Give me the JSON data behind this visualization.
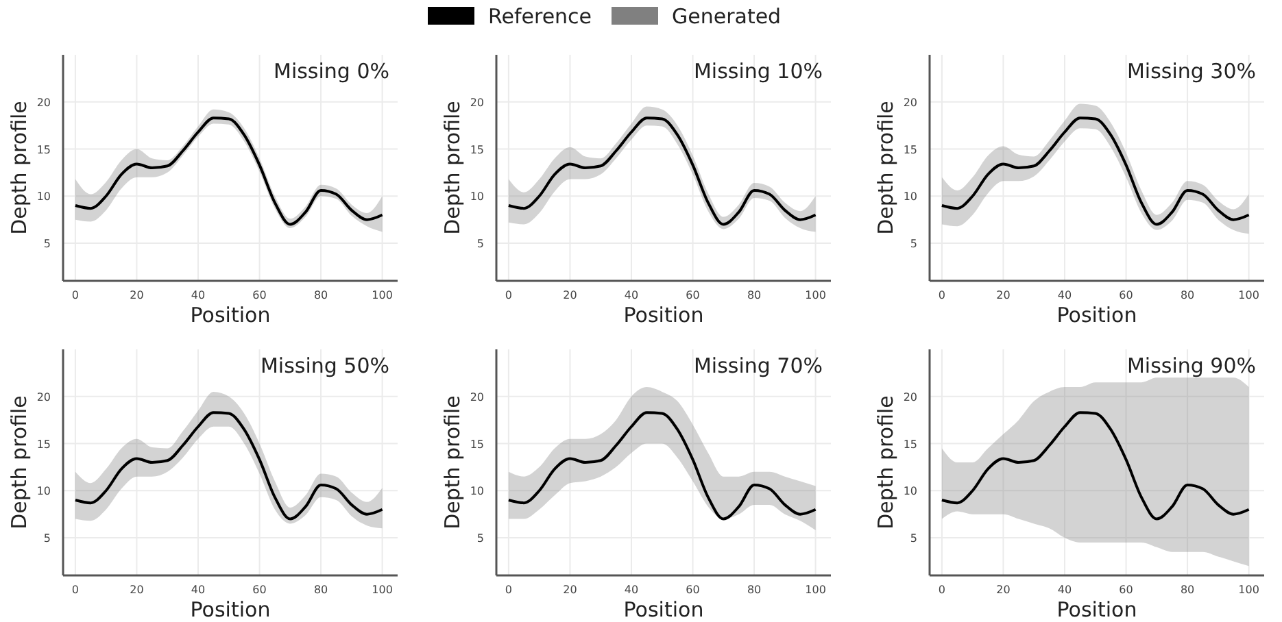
{
  "chart_data": [
    {
      "type": "line",
      "title": "Missing 0%",
      "xlabel": "Position",
      "ylabel": "Depth profile",
      "x": [
        0,
        5,
        10,
        15,
        20,
        25,
        30,
        35,
        40,
        45,
        50,
        55,
        60,
        65,
        70,
        75,
        80,
        85,
        90,
        95,
        100
      ],
      "xlim": [
        -4,
        105
      ],
      "ylim": [
        1,
        25
      ],
      "xticks": [
        0,
        20,
        40,
        60,
        80,
        100
      ],
      "yticks": [
        5,
        10,
        15,
        20
      ],
      "grid": true,
      "legend": "top",
      "series": [
        {
          "name": "Generated",
          "color": "#808080",
          "values": [
            null,
            null,
            null,
            null,
            null,
            null,
            null,
            null,
            null,
            null,
            null,
            null,
            null,
            null,
            null,
            null,
            null,
            null,
            null,
            null,
            null
          ],
          "lower": [
            7.5,
            7.3,
            8.5,
            10.8,
            12.0,
            12.0,
            12.5,
            14.3,
            16.3,
            17.7,
            17.6,
            15.8,
            12.6,
            8.7,
            6.6,
            7.8,
            10.0,
            9.7,
            7.9,
            6.8,
            6.2
          ],
          "upper": [
            11.8,
            10.2,
            11.5,
            13.8,
            15.0,
            14.0,
            13.8,
            15.3,
            17.4,
            19.2,
            18.9,
            17.2,
            14.0,
            10.0,
            7.6,
            8.9,
            11.2,
            10.8,
            9.1,
            8.2,
            10.0
          ]
        },
        {
          "name": "Reference",
          "color": "#000000",
          "values": [
            9,
            8.7,
            10,
            12.3,
            13.4,
            13.0,
            13.2,
            14.8,
            16.8,
            18.3,
            18.2,
            16.5,
            13.3,
            9.3,
            7.0,
            8.3,
            10.6,
            10.2,
            8.5,
            7.5,
            8.0
          ]
        }
      ]
    },
    {
      "type": "line",
      "title": "Missing 10%",
      "xlabel": "Position",
      "ylabel": "Depth profile",
      "x": [
        0,
        5,
        10,
        15,
        20,
        25,
        30,
        35,
        40,
        45,
        50,
        55,
        60,
        65,
        70,
        75,
        80,
        85,
        90,
        95,
        100
      ],
      "xlim": [
        -4,
        105
      ],
      "ylim": [
        1,
        25
      ],
      "xticks": [
        0,
        20,
        40,
        60,
        80,
        100
      ],
      "yticks": [
        5,
        10,
        15,
        20
      ],
      "grid": true,
      "series": [
        {
          "color": "#808080",
          "values": [
            null,
            null,
            null,
            null,
            null,
            null,
            null,
            null,
            null,
            null,
            null,
            null,
            null,
            null,
            null,
            null,
            null,
            null,
            null,
            null,
            null
          ],
          "lower": [
            7.2,
            7.0,
            8.2,
            10.5,
            11.8,
            11.8,
            12.3,
            14.0,
            16.0,
            17.5,
            17.4,
            15.5,
            12.3,
            8.4,
            6.5,
            7.6,
            9.8,
            9.5,
            7.7,
            6.6,
            6.2
          ],
          "upper": [
            11.8,
            10.4,
            11.8,
            14.0,
            15.2,
            14.2,
            14.0,
            15.6,
            17.7,
            19.5,
            19.2,
            17.5,
            14.3,
            10.3,
            7.8,
            9.1,
            11.4,
            11.0,
            9.3,
            8.4,
            10.0
          ]
        },
        {
          "color": "#000000",
          "values": [
            9,
            8.7,
            10,
            12.3,
            13.4,
            13.0,
            13.2,
            14.8,
            16.8,
            18.3,
            18.2,
            16.5,
            13.3,
            9.3,
            7.0,
            8.3,
            10.6,
            10.2,
            8.5,
            7.5,
            8.0
          ]
        }
      ]
    },
    {
      "type": "line",
      "title": "Missing 30%",
      "xlabel": "Position",
      "ylabel": "Depth profile",
      "x": [
        0,
        5,
        10,
        15,
        20,
        25,
        30,
        35,
        40,
        45,
        50,
        55,
        60,
        65,
        70,
        75,
        80,
        85,
        90,
        95,
        100
      ],
      "xlim": [
        -4,
        105
      ],
      "ylim": [
        1,
        25
      ],
      "xticks": [
        0,
        20,
        40,
        60,
        80,
        100
      ],
      "yticks": [
        5,
        10,
        15,
        20
      ],
      "grid": true,
      "series": [
        {
          "color": "#808080",
          "values": [
            null,
            null,
            null,
            null,
            null,
            null,
            null,
            null,
            null,
            null,
            null,
            null,
            null,
            null,
            null,
            null,
            null,
            null,
            null,
            null,
            null
          ],
          "lower": [
            7.0,
            6.8,
            8.0,
            10.3,
            11.6,
            11.6,
            12.1,
            13.8,
            15.8,
            17.2,
            17.1,
            15.2,
            12.0,
            8.2,
            6.4,
            7.4,
            9.6,
            9.3,
            7.5,
            6.4,
            6.0
          ],
          "upper": [
            12.0,
            10.6,
            12.0,
            14.3,
            15.3,
            14.4,
            14.2,
            15.9,
            18.0,
            19.8,
            19.6,
            17.8,
            14.6,
            10.6,
            8.0,
            9.3,
            11.6,
            11.2,
            9.5,
            8.6,
            10.2
          ]
        },
        {
          "color": "#000000",
          "values": [
            9,
            8.7,
            10,
            12.3,
            13.4,
            13.0,
            13.2,
            14.8,
            16.8,
            18.3,
            18.2,
            16.5,
            13.3,
            9.3,
            7.0,
            8.3,
            10.6,
            10.2,
            8.5,
            7.5,
            8.0
          ]
        }
      ]
    },
    {
      "type": "line",
      "title": "Missing 50%",
      "xlabel": "Position",
      "ylabel": "Depth profile",
      "x": [
        0,
        5,
        10,
        15,
        20,
        25,
        30,
        35,
        40,
        45,
        50,
        55,
        60,
        65,
        70,
        75,
        80,
        85,
        90,
        95,
        100
      ],
      "xlim": [
        -4,
        105
      ],
      "ylim": [
        1,
        25
      ],
      "xticks": [
        0,
        20,
        40,
        60,
        80,
        100
      ],
      "yticks": [
        5,
        10,
        15,
        20
      ],
      "grid": true,
      "series": [
        {
          "color": "#808080",
          "values": [
            null,
            null,
            null,
            null,
            null,
            null,
            null,
            null,
            null,
            null,
            null,
            null,
            null,
            null,
            null,
            null,
            null,
            null,
            null,
            null,
            null
          ],
          "lower": [
            7.0,
            6.8,
            8.0,
            10.2,
            11.5,
            11.5,
            12.0,
            13.5,
            15.5,
            16.8,
            16.8,
            15.0,
            11.8,
            8.0,
            6.5,
            7.4,
            9.3,
            9.0,
            7.3,
            6.3,
            6.0
          ],
          "upper": [
            12.0,
            10.8,
            12.3,
            14.5,
            15.5,
            14.6,
            14.5,
            16.3,
            18.5,
            20.5,
            20.0,
            18.2,
            15.0,
            11.0,
            8.2,
            9.5,
            11.8,
            11.5,
            9.8,
            8.8,
            10.3
          ]
        },
        {
          "color": "#000000",
          "values": [
            9,
            8.7,
            10,
            12.3,
            13.4,
            13.0,
            13.2,
            14.8,
            16.8,
            18.3,
            18.2,
            16.5,
            13.3,
            9.3,
            7.0,
            8.3,
            10.6,
            10.2,
            8.5,
            7.5,
            8.0
          ]
        }
      ]
    },
    {
      "type": "line",
      "title": "Missing 70%",
      "xlabel": "Position",
      "ylabel": "Depth profile",
      "x": [
        0,
        5,
        10,
        15,
        20,
        25,
        30,
        35,
        40,
        45,
        50,
        55,
        60,
        65,
        70,
        75,
        80,
        85,
        90,
        95,
        100
      ],
      "xlim": [
        -4,
        105
      ],
      "ylim": [
        1,
        25
      ],
      "xticks": [
        0,
        20,
        40,
        60,
        80,
        100
      ],
      "yticks": [
        5,
        10,
        15,
        20
      ],
      "grid": true,
      "series": [
        {
          "color": "#808080",
          "values": [
            null,
            null,
            null,
            null,
            null,
            null,
            null,
            null,
            null,
            null,
            null,
            null,
            null,
            null,
            null,
            null,
            null,
            null,
            null,
            null,
            null
          ],
          "lower": [
            7.0,
            7.0,
            8.0,
            9.5,
            10.8,
            11.0,
            11.5,
            12.5,
            14.0,
            15.0,
            15.0,
            13.5,
            11.0,
            8.3,
            7.0,
            7.5,
            8.5,
            8.5,
            7.5,
            6.8,
            5.8
          ],
          "upper": [
            12.0,
            11.5,
            12.5,
            14.5,
            15.5,
            15.5,
            16.0,
            17.5,
            20.0,
            21.0,
            20.5,
            19.5,
            17.0,
            14.0,
            11.5,
            11.5,
            12.0,
            12.0,
            11.5,
            11.0,
            10.5
          ]
        },
        {
          "color": "#000000",
          "values": [
            9,
            8.7,
            10,
            12.3,
            13.4,
            13.0,
            13.2,
            14.8,
            16.8,
            18.3,
            18.2,
            16.5,
            13.3,
            9.3,
            7.0,
            8.3,
            10.6,
            10.2,
            8.5,
            7.5,
            8.0
          ]
        }
      ]
    },
    {
      "type": "line",
      "title": "Missing 90%",
      "xlabel": "Position",
      "ylabel": "Depth profile",
      "x": [
        0,
        5,
        10,
        15,
        20,
        25,
        30,
        35,
        40,
        45,
        50,
        55,
        60,
        65,
        70,
        75,
        80,
        85,
        90,
        95,
        100
      ],
      "xlim": [
        -4,
        105
      ],
      "ylim": [
        1,
        25
      ],
      "xticks": [
        0,
        20,
        40,
        60,
        80,
        100
      ],
      "yticks": [
        5,
        10,
        15,
        20
      ],
      "grid": true,
      "series": [
        {
          "color": "#808080",
          "values": [
            null,
            null,
            null,
            null,
            null,
            null,
            null,
            null,
            null,
            null,
            null,
            null,
            null,
            null,
            null,
            null,
            null,
            null,
            null,
            null,
            null
          ],
          "lower": [
            7.0,
            7.8,
            7.5,
            7.5,
            7.5,
            7.0,
            6.5,
            6.0,
            5.0,
            4.5,
            4.5,
            4.5,
            4.5,
            4.5,
            4.0,
            3.5,
            3.5,
            3.5,
            3.0,
            2.5,
            2.0
          ],
          "upper": [
            14.5,
            13.0,
            13.0,
            14.5,
            16.0,
            17.5,
            19.5,
            20.5,
            21.0,
            21.0,
            21.5,
            21.5,
            21.5,
            21.5,
            22.0,
            22.0,
            22.0,
            22.0,
            22.0,
            22.0,
            21.0
          ]
        },
        {
          "color": "#000000",
          "values": [
            9,
            8.7,
            10,
            12.3,
            13.4,
            13.0,
            13.2,
            14.8,
            16.8,
            18.3,
            18.2,
            16.5,
            13.3,
            9.3,
            7.0,
            8.3,
            10.6,
            10.2,
            8.5,
            7.5,
            8.0
          ]
        }
      ]
    }
  ]
}
